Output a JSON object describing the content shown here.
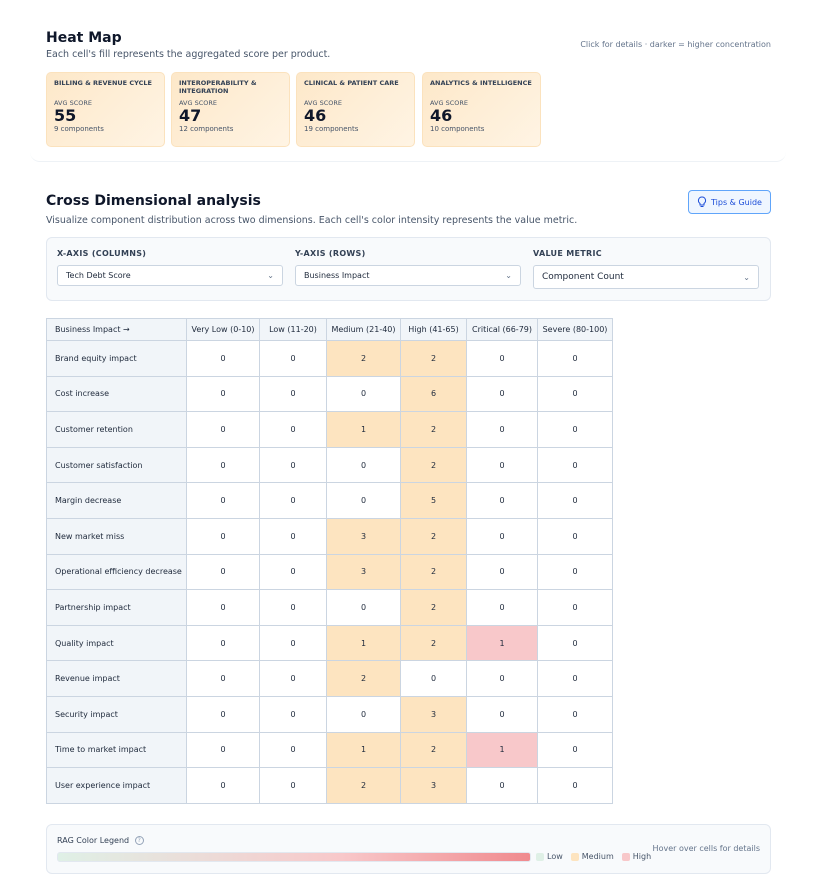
{
  "heat_map": {
    "title": "Heat Map",
    "subtitle": "Each cell's fill represents the aggregated score per product.",
    "hint": "Click for details · darker = higher concentration",
    "cards": [
      {
        "name": "BILLING & REVENUE CYCLE",
        "label": "AVG SCORE",
        "score": 55,
        "components": "9 components"
      },
      {
        "name": "INTEROPERABILITY & INTEGRATION",
        "label": "AVG SCORE",
        "score": 47,
        "components": "12 components"
      },
      {
        "name": "CLINICAL & PATIENT CARE",
        "label": "AVG SCORE",
        "score": 46,
        "components": "19 components"
      },
      {
        "name": "ANALYTICS & INTELLIGENCE",
        "label": "AVG SCORE",
        "score": 46,
        "components": "10 components"
      }
    ]
  },
  "cross": {
    "title": "Cross Dimensional analysis",
    "subtitle": "Visualize component distribution across two dimensions. Each cell's color intensity represents the value metric.",
    "tips_button": "Tips & Guide",
    "controls": [
      {
        "label": "X-AXIS (COLUMNS)",
        "value": "Tech Debt Score"
      },
      {
        "label": "Y-AXIS (ROWS)",
        "value": "Business Impact"
      },
      {
        "label": "VALUE METRIC",
        "value": "Component Count"
      }
    ],
    "table": {
      "corner": "Business Impact →",
      "columns": [
        "Very Low (0-10)",
        "Low (11-20)",
        "Medium (21-40)",
        "High (41-65)",
        "Critical (66-79)",
        "Severe (80-100)"
      ],
      "column_colors": [
        "#dff0e6",
        "#dff0e6",
        "#fde4c0",
        "#fde4c0",
        "#f8c8ca",
        "#f8c8ca"
      ],
      "rows": [
        {
          "label": "Brand equity impact",
          "values": [
            0,
            0,
            2,
            2,
            0,
            0
          ]
        },
        {
          "label": "Cost increase",
          "values": [
            0,
            0,
            0,
            6,
            0,
            0
          ]
        },
        {
          "label": "Customer retention",
          "values": [
            0,
            0,
            1,
            2,
            0,
            0
          ]
        },
        {
          "label": "Customer satisfaction",
          "values": [
            0,
            0,
            0,
            2,
            0,
            0
          ]
        },
        {
          "label": "Margin decrease",
          "values": [
            0,
            0,
            0,
            5,
            0,
            0
          ]
        },
        {
          "label": "New market miss",
          "values": [
            0,
            0,
            3,
            2,
            0,
            0
          ]
        },
        {
          "label": "Operational efficiency decrease",
          "values": [
            0,
            0,
            3,
            2,
            0,
            0
          ]
        },
        {
          "label": "Partnership impact",
          "values": [
            0,
            0,
            0,
            2,
            0,
            0
          ]
        },
        {
          "label": "Quality impact",
          "values": [
            0,
            0,
            1,
            2,
            1,
            0
          ]
        },
        {
          "label": "Revenue impact",
          "values": [
            0,
            0,
            2,
            0,
            0,
            0
          ]
        },
        {
          "label": "Security impact",
          "values": [
            0,
            0,
            0,
            3,
            0,
            0
          ]
        },
        {
          "label": "Time to market impact",
          "values": [
            0,
            0,
            1,
            2,
            1,
            0
          ]
        },
        {
          "label": "User experience impact",
          "values": [
            0,
            0,
            2,
            3,
            0,
            0
          ]
        }
      ]
    },
    "legend": {
      "title": "RAG Color Legend",
      "items": [
        {
          "name": "Low",
          "color": "#dff0e6"
        },
        {
          "name": "Medium",
          "color": "#fde4c0"
        },
        {
          "name": "High",
          "color": "#f8c8ca"
        }
      ],
      "hint": "Hover over cells for details"
    }
  }
}
